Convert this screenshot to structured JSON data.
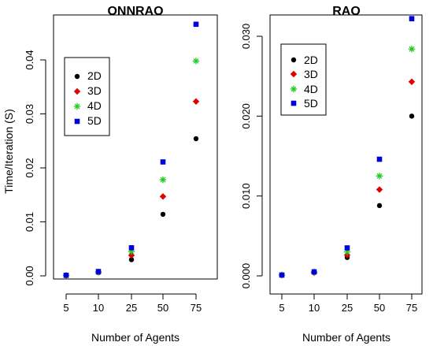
{
  "colors": {
    "2D": "#000000",
    "3D": "#e00000",
    "4D": "#22cc22",
    "5D": "#0000dd"
  },
  "markers": {
    "2D": "circle",
    "3D": "diamond",
    "4D": "asterisk",
    "5D": "square"
  },
  "chart_data": [
    {
      "type": "scatter",
      "title": "ONNRAO",
      "xlabel": "Number of Agents",
      "ylabel": "Time/Iteration (S)",
      "categories": [
        "5",
        "10",
        "25",
        "50",
        "75"
      ],
      "ylim": [
        0,
        0.047
      ],
      "yticks": [
        0.0,
        0.01,
        0.02,
        0.03,
        0.04
      ],
      "ytick_labels": [
        "0.00",
        "0.01",
        "0.02",
        "0.03",
        "0.04"
      ],
      "legend": {
        "position": "top-left"
      },
      "series": [
        {
          "name": "2D",
          "values": [
            0.0001,
            0.0006,
            0.003,
            0.0114,
            0.0254
          ]
        },
        {
          "name": "3D",
          "values": [
            0.0001,
            0.0007,
            0.0038,
            0.0147,
            0.0323
          ]
        },
        {
          "name": "4D",
          "values": [
            0.0001,
            0.0007,
            0.0045,
            0.0178,
            0.0398
          ]
        },
        {
          "name": "5D",
          "values": [
            0.0001,
            0.0008,
            0.0052,
            0.0211,
            0.0466
          ]
        }
      ]
    },
    {
      "type": "scatter",
      "title": "RAO",
      "xlabel": "Number of Agents",
      "ylabel": "",
      "categories": [
        "5",
        "10",
        "25",
        "50",
        "75"
      ],
      "ylim": [
        0,
        0.0325
      ],
      "yticks": [
        0.0,
        0.01,
        0.02,
        0.03
      ],
      "ytick_labels": [
        "0.000",
        "0.010",
        "0.020",
        "0.030"
      ],
      "legend": {
        "position": "top-left"
      },
      "series": [
        {
          "name": "2D",
          "values": [
            0.0001,
            0.0004,
            0.0023,
            0.0088,
            0.02
          ]
        },
        {
          "name": "3D",
          "values": [
            0.0001,
            0.0004,
            0.0026,
            0.0108,
            0.0243
          ]
        },
        {
          "name": "4D",
          "values": [
            0.0001,
            0.0005,
            0.003,
            0.0125,
            0.0284
          ]
        },
        {
          "name": "5D",
          "values": [
            0.0001,
            0.0005,
            0.0035,
            0.0146,
            0.0322
          ]
        }
      ]
    }
  ]
}
